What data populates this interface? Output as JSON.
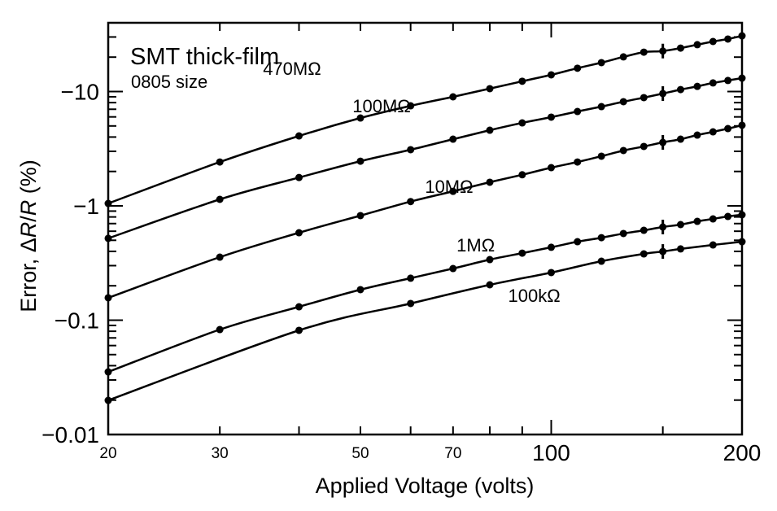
{
  "chart_data": {
    "type": "line",
    "title": "SMT thick-film",
    "subtitle": "0805 size",
    "xlabel": "Applied Voltage (volts)",
    "ylabel_prefix": "Error, ",
    "ylabel_delta": "Δ",
    "ylabel_R1": "R",
    "ylabel_slash": "/",
    "ylabel_R2": "R",
    "ylabel_suffix": " (%)",
    "xscale": "log",
    "yscale": "log",
    "xlim": [
      20,
      200
    ],
    "ylim_magnitude": [
      0.01,
      40
    ],
    "y_sign": "negative",
    "grid": false,
    "x_ticks": [
      {
        "value": 20,
        "label": "20",
        "size": "small"
      },
      {
        "value": 30,
        "label": "30",
        "size": "small"
      },
      {
        "value": 40,
        "label": ""
      },
      {
        "value": 50,
        "label": "50",
        "size": "small"
      },
      {
        "value": 60,
        "label": ""
      },
      {
        "value": 70,
        "label": "70",
        "size": "small"
      },
      {
        "value": 80,
        "label": ""
      },
      {
        "value": 90,
        "label": ""
      },
      {
        "value": 100,
        "label": "100",
        "size": "large"
      },
      {
        "value": 150,
        "label": ""
      },
      {
        "value": 200,
        "label": "200",
        "size": "large"
      }
    ],
    "y_ticks": [
      {
        "value": -10,
        "label": "−10"
      },
      {
        "value": -1,
        "label": "−1"
      },
      {
        "value": -0.1,
        "label": "−0.1"
      },
      {
        "value": -0.01,
        "label": "−0.01"
      }
    ],
    "error_bar_x": 150,
    "series": [
      {
        "name": "470MΩ",
        "label_anchor": {
          "x": 39,
          "y": 14
        },
        "x": [
          20,
          30,
          40,
          50,
          60,
          70,
          80,
          90,
          100,
          110,
          120,
          130,
          140,
          150,
          160,
          170,
          180,
          190,
          200
        ],
        "y": [
          -1.05,
          -2.42,
          -4.09,
          -5.87,
          -7.5,
          -8.99,
          -10.6,
          -12.3,
          -14.0,
          -16.0,
          -17.9,
          -20.1,
          -22.1,
          -22.6,
          -24.0,
          -25.7,
          -27.4,
          -28.8,
          -30.7
        ]
      },
      {
        "name": "100MΩ",
        "label_anchor": {
          "x": 54,
          "y": 6.6
        },
        "x": [
          20,
          30,
          40,
          50,
          60,
          70,
          80,
          90,
          100,
          110,
          120,
          130,
          140,
          150,
          160,
          170,
          180,
          190,
          200
        ],
        "y": [
          -0.52,
          -1.14,
          -1.77,
          -2.46,
          -3.1,
          -3.83,
          -4.59,
          -5.32,
          -5.97,
          -6.69,
          -7.38,
          -8.15,
          -8.85,
          -9.6,
          -10.4,
          -11.1,
          -11.9,
          -12.5,
          -13.1
        ]
      },
      {
        "name": "10MΩ",
        "label_anchor": {
          "x": 69,
          "y": 1.3
        },
        "x": [
          20,
          30,
          40,
          50,
          60,
          70,
          80,
          90,
          100,
          110,
          120,
          130,
          140,
          150,
          160,
          170,
          180,
          190,
          200
        ],
        "y": [
          -0.157,
          -0.356,
          -0.582,
          -0.822,
          -1.09,
          -1.34,
          -1.61,
          -1.87,
          -2.16,
          -2.42,
          -2.72,
          -3.05,
          -3.31,
          -3.59,
          -3.83,
          -4.16,
          -4.44,
          -4.74,
          -5.07
        ]
      },
      {
        "name": "1MΩ",
        "label_anchor": {
          "x": 76,
          "y": 0.4
        },
        "x": [
          20,
          30,
          40,
          50,
          60,
          70,
          80,
          90,
          100,
          110,
          120,
          130,
          140,
          150,
          160,
          170,
          180,
          190,
          200
        ],
        "y": [
          -0.0353,
          -0.0828,
          -0.131,
          -0.185,
          -0.233,
          -0.283,
          -0.339,
          -0.386,
          -0.434,
          -0.486,
          -0.527,
          -0.573,
          -0.611,
          -0.653,
          -0.686,
          -0.732,
          -0.769,
          -0.808,
          -0.835
        ]
      },
      {
        "name": "100kΩ",
        "label_anchor": {
          "x": 94,
          "y": 0.145
        },
        "x": [
          20,
          40,
          60,
          80,
          100,
          120,
          140,
          150,
          160,
          180,
          200
        ],
        "y": [
          -0.0199,
          -0.0815,
          -0.14,
          -0.204,
          -0.261,
          -0.328,
          -0.38,
          -0.399,
          -0.42,
          -0.455,
          -0.486
        ]
      }
    ]
  }
}
